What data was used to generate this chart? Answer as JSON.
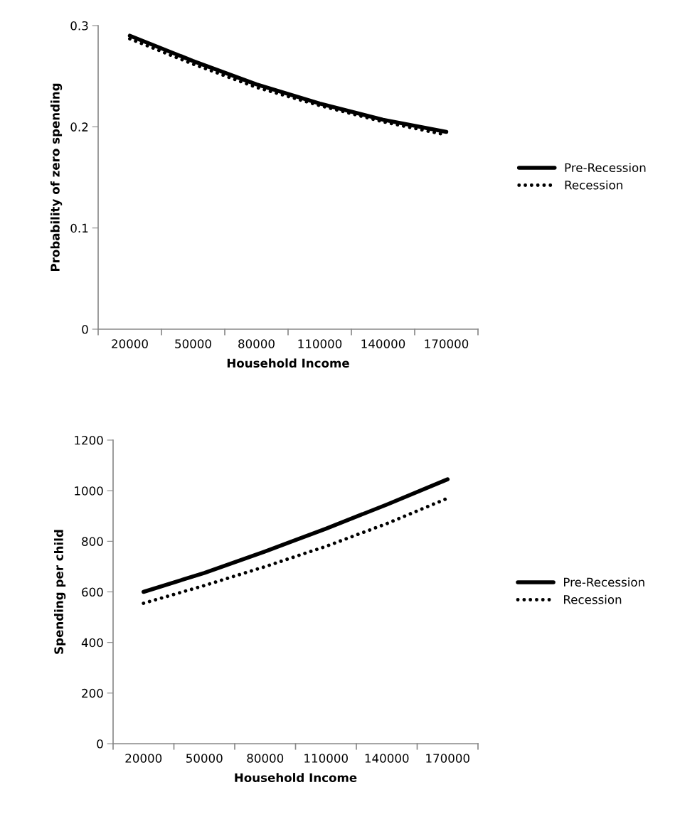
{
  "chart_data": [
    {
      "type": "line",
      "xlabel": "Household Income",
      "ylabel": "Probability of zero spending",
      "categories": [
        "20000",
        "50000",
        "80000",
        "110000",
        "140000",
        "170000"
      ],
      "series": [
        {
          "name": "Pre-Recession",
          "color": "#000000",
          "line_style": "solid",
          "values": [
            0.29,
            0.265,
            0.242,
            0.223,
            0.207,
            0.195
          ]
        },
        {
          "name": "Recession",
          "color": "#000000",
          "line_style": "dotted",
          "values": [
            0.287,
            0.262,
            0.239,
            0.221,
            0.205,
            0.192
          ]
        }
      ],
      "ylim": [
        0,
        0.3
      ],
      "yticks": [
        {
          "value": 0,
          "label": "0"
        },
        0.1,
        0.2,
        0.3
      ],
      "grid": false,
      "legend": "right"
    },
    {
      "type": "line",
      "xlabel": "Household Income",
      "ylabel": "Spending per child",
      "categories": [
        "20000",
        "50000",
        "80000",
        "110000",
        "140000",
        "170000"
      ],
      "series": [
        {
          "name": "Pre-Recession",
          "color": "#000000",
          "line_style": "solid",
          "values": [
            600,
            675,
            760,
            850,
            945,
            1045
          ]
        },
        {
          "name": "Recession",
          "color": "#000000",
          "line_style": "dotted",
          "values": [
            555,
            625,
            700,
            780,
            870,
            970
          ]
        }
      ],
      "ylim": [
        0,
        1200
      ],
      "yticks": [
        0,
        200,
        400,
        600,
        800,
        1000,
        1200
      ],
      "grid": false,
      "legend": "right"
    }
  ]
}
